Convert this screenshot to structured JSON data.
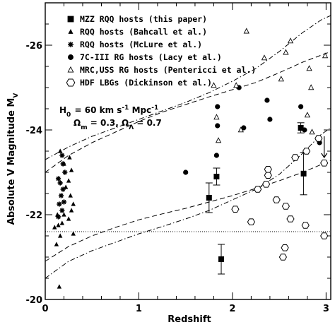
{
  "chart_data": {
    "type": "scatter",
    "xlabel": "Redshift",
    "ylabel": "Absolute V Magnitude M",
    "ylabel_sub": "V",
    "xlim": [
      0,
      3.05
    ],
    "ylim": [
      -20,
      -27
    ],
    "y_inverted": true,
    "x_ticks": [
      "0",
      "1",
      "2",
      "3"
    ],
    "y_ticks": [
      "-20",
      "-22",
      "-24",
      "-26"
    ],
    "grid": false,
    "legend_position": "top-right",
    "legend": [
      {
        "label": "MZZ RQQ hosts (this paper)",
        "marker": "filled-square"
      },
      {
        "label": "RQQ hosts (Bahcall et al.)",
        "marker": "filled-triangle"
      },
      {
        "label": "RQQ hosts (McLure et al.)",
        "marker": "asterisk"
      },
      {
        "label": "7C-III RG hosts (Lacy et al.)",
        "marker": "filled-circle"
      },
      {
        "label": "MRC,USS RG hosts (Pentericci et al.)",
        "marker": "open-triangle"
      },
      {
        "label": "HDF LBGs (Dickinson et al.)",
        "marker": "open-hexagon"
      }
    ],
    "annotations": {
      "h0": {
        "main": "H",
        "sub": "0",
        "rest": " = 60 km s",
        "sup": "-1",
        "end": " Mpc",
        "sup2": "-1"
      },
      "omega": {
        "om": "Ω",
        "om_sub": "m",
        "om_val": " = 0.3,  ",
        "ol": "Ω",
        "ol_sub": "Λ",
        "ol_val": " = 0.7"
      }
    },
    "reference_line": {
      "style": "dotted",
      "y": -21.6
    },
    "series": [
      {
        "name": "MZZ RQQ hosts (this paper)",
        "marker": "filled-square",
        "points": [
          {
            "x": 1.75,
            "y": -22.4,
            "err_lo": 0.35,
            "err_hi": 0.35
          },
          {
            "x": 1.83,
            "y": -22.9,
            "err_lo": 0.2,
            "err_hi": 0.2
          },
          {
            "x": 1.88,
            "y": -20.95,
            "err_lo": 0.35,
            "err_hi": 0.35
          },
          {
            "x": 2.73,
            "y": -24.05,
            "err_lo": 0.12,
            "err_hi": 0.12
          },
          {
            "x": 2.76,
            "y": -22.97,
            "err_lo": 0.5,
            "err_hi": 0.5
          }
        ]
      },
      {
        "name": "RQQ hosts (Bahcall et al.)",
        "marker": "filled-triangle",
        "points": [
          {
            "x": 0.15,
            "y": -20.3
          },
          {
            "x": 0.12,
            "y": -21.3
          },
          {
            "x": 0.16,
            "y": -21.5
          },
          {
            "x": 0.1,
            "y": -21.7
          },
          {
            "x": 0.14,
            "y": -21.75
          },
          {
            "x": 0.18,
            "y": -21.8
          },
          {
            "x": 0.13,
            "y": -22.0
          },
          {
            "x": 0.2,
            "y": -22.0
          },
          {
            "x": 0.25,
            "y": -21.9
          },
          {
            "x": 0.28,
            "y": -22.1
          },
          {
            "x": 0.3,
            "y": -22.25
          },
          {
            "x": 0.27,
            "y": -22.45
          },
          {
            "x": 0.22,
            "y": -22.65
          },
          {
            "x": 0.25,
            "y": -22.8
          },
          {
            "x": 0.28,
            "y": -23.05
          },
          {
            "x": 0.2,
            "y": -23.2
          },
          {
            "x": 0.26,
            "y": -23.35
          },
          {
            "x": 0.16,
            "y": -23.5
          },
          {
            "x": 0.3,
            "y": -21.55
          }
        ]
      },
      {
        "name": "RQQ hosts (McLure et al.)",
        "marker": "asterisk",
        "points": [
          {
            "x": 0.14,
            "y": -21.95
          },
          {
            "x": 0.18,
            "y": -22.1
          },
          {
            "x": 0.15,
            "y": -22.25
          },
          {
            "x": 0.2,
            "y": -22.3
          },
          {
            "x": 0.17,
            "y": -22.45
          },
          {
            "x": 0.19,
            "y": -22.6
          },
          {
            "x": 0.16,
            "y": -22.75
          },
          {
            "x": 0.14,
            "y": -22.85
          },
          {
            "x": 0.21,
            "y": -23.0
          },
          {
            "x": 0.19,
            "y": -23.2
          },
          {
            "x": 0.18,
            "y": -23.4
          }
        ]
      },
      {
        "name": "7C-III RG hosts (Lacy et al.)",
        "marker": "filled-circle",
        "points": [
          {
            "x": 1.5,
            "y": -23.0
          },
          {
            "x": 1.83,
            "y": -23.4
          },
          {
            "x": 1.84,
            "y": -24.1
          },
          {
            "x": 1.84,
            "y": -24.55
          },
          {
            "x": 2.07,
            "y": -25.0
          },
          {
            "x": 2.12,
            "y": -24.05
          },
          {
            "x": 2.37,
            "y": -24.7
          },
          {
            "x": 2.4,
            "y": -24.25
          },
          {
            "x": 2.73,
            "y": -24.55
          },
          {
            "x": 2.77,
            "y": -24.0
          },
          {
            "x": 2.93,
            "y": -23.7
          }
        ]
      },
      {
        "name": "MRC,USS RG hosts (Pentericci et al.)",
        "marker": "open-triangle",
        "points": [
          {
            "x": 1.8,
            "y": -25.05
          },
          {
            "x": 1.83,
            "y": -24.3
          },
          {
            "x": 1.85,
            "y": -23.75
          },
          {
            "x": 2.04,
            "y": -25.05
          },
          {
            "x": 2.09,
            "y": -24.0
          },
          {
            "x": 2.15,
            "y": -26.33
          },
          {
            "x": 2.34,
            "y": -25.7
          },
          {
            "x": 2.52,
            "y": -25.2
          },
          {
            "x": 2.57,
            "y": -25.83
          },
          {
            "x": 2.62,
            "y": -26.1
          },
          {
            "x": 2.82,
            "y": -25.45
          },
          {
            "x": 2.84,
            "y": -25.0
          },
          {
            "x": 2.8,
            "y": -24.35
          },
          {
            "x": 2.85,
            "y": -23.95
          },
          {
            "x": 2.99,
            "y": -25.75
          }
        ]
      },
      {
        "name": "HDF LBGs (Dickinson et al.)",
        "marker": "open-hexagon",
        "points": [
          {
            "x": 2.03,
            "y": -22.13
          },
          {
            "x": 2.2,
            "y": -21.83
          },
          {
            "x": 2.27,
            "y": -22.6
          },
          {
            "x": 2.38,
            "y": -22.93
          },
          {
            "x": 2.38,
            "y": -23.07
          },
          {
            "x": 2.36,
            "y": -22.72
          },
          {
            "x": 2.47,
            "y": -22.35
          },
          {
            "x": 2.54,
            "y": -21.0
          },
          {
            "x": 2.56,
            "y": -21.22
          },
          {
            "x": 2.57,
            "y": -22.2
          },
          {
            "x": 2.62,
            "y": -21.9
          },
          {
            "x": 2.67,
            "y": -23.35
          },
          {
            "x": 2.78,
            "y": -21.75
          },
          {
            "x": 2.79,
            "y": -23.5
          },
          {
            "x": 2.92,
            "y": -23.8
          },
          {
            "x": 2.98,
            "y": -23.22
          },
          {
            "x": 2.98,
            "y": -21.5
          }
        ]
      }
    ],
    "upper_limit_arrow": {
      "x": 2.98,
      "y_from": -23.85,
      "y_to": -23.35
    },
    "model_tracks": [
      {
        "style": "dashed",
        "x": [
          0,
          0.25,
          0.5,
          0.75,
          1.0,
          1.25,
          1.5,
          1.75,
          2.0,
          2.25,
          2.5,
          2.75,
          3.05
        ],
        "y": [
          -23.0,
          -23.4,
          -23.7,
          -23.95,
          -24.2,
          -24.42,
          -24.6,
          -24.78,
          -24.95,
          -25.12,
          -25.35,
          -25.6,
          -25.85
        ]
      },
      {
        "style": "dash-dot",
        "x": [
          0,
          0.25,
          0.5,
          0.75,
          1.0,
          1.25,
          1.5,
          1.75,
          2.0,
          2.25,
          2.5,
          2.75,
          2.95,
          3.05
        ],
        "y": [
          -23.3,
          -23.6,
          -23.85,
          -24.05,
          -24.25,
          -24.45,
          -24.65,
          -24.88,
          -25.15,
          -25.45,
          -25.85,
          -26.3,
          -26.6,
          -26.7
        ]
      },
      {
        "style": "dashed",
        "x": [
          0,
          0.25,
          0.5,
          0.75,
          1.0,
          1.25,
          1.5,
          1.75,
          2.0,
          2.25,
          2.5,
          2.75,
          3.05
        ],
        "y": [
          -20.9,
          -21.25,
          -21.5,
          -21.7,
          -21.88,
          -22.02,
          -22.15,
          -22.3,
          -22.45,
          -22.62,
          -22.8,
          -23.0,
          -23.28
        ]
      },
      {
        "style": "dash-dot",
        "x": [
          0,
          0.25,
          0.5,
          0.75,
          1.0,
          1.25,
          1.5,
          1.75,
          2.0,
          2.25,
          2.5,
          2.75,
          2.95,
          3.05
        ],
        "y": [
          -20.5,
          -20.9,
          -21.15,
          -21.35,
          -21.55,
          -21.72,
          -21.9,
          -22.1,
          -22.35,
          -22.6,
          -22.95,
          -23.45,
          -23.9,
          -24.05
        ]
      }
    ]
  }
}
